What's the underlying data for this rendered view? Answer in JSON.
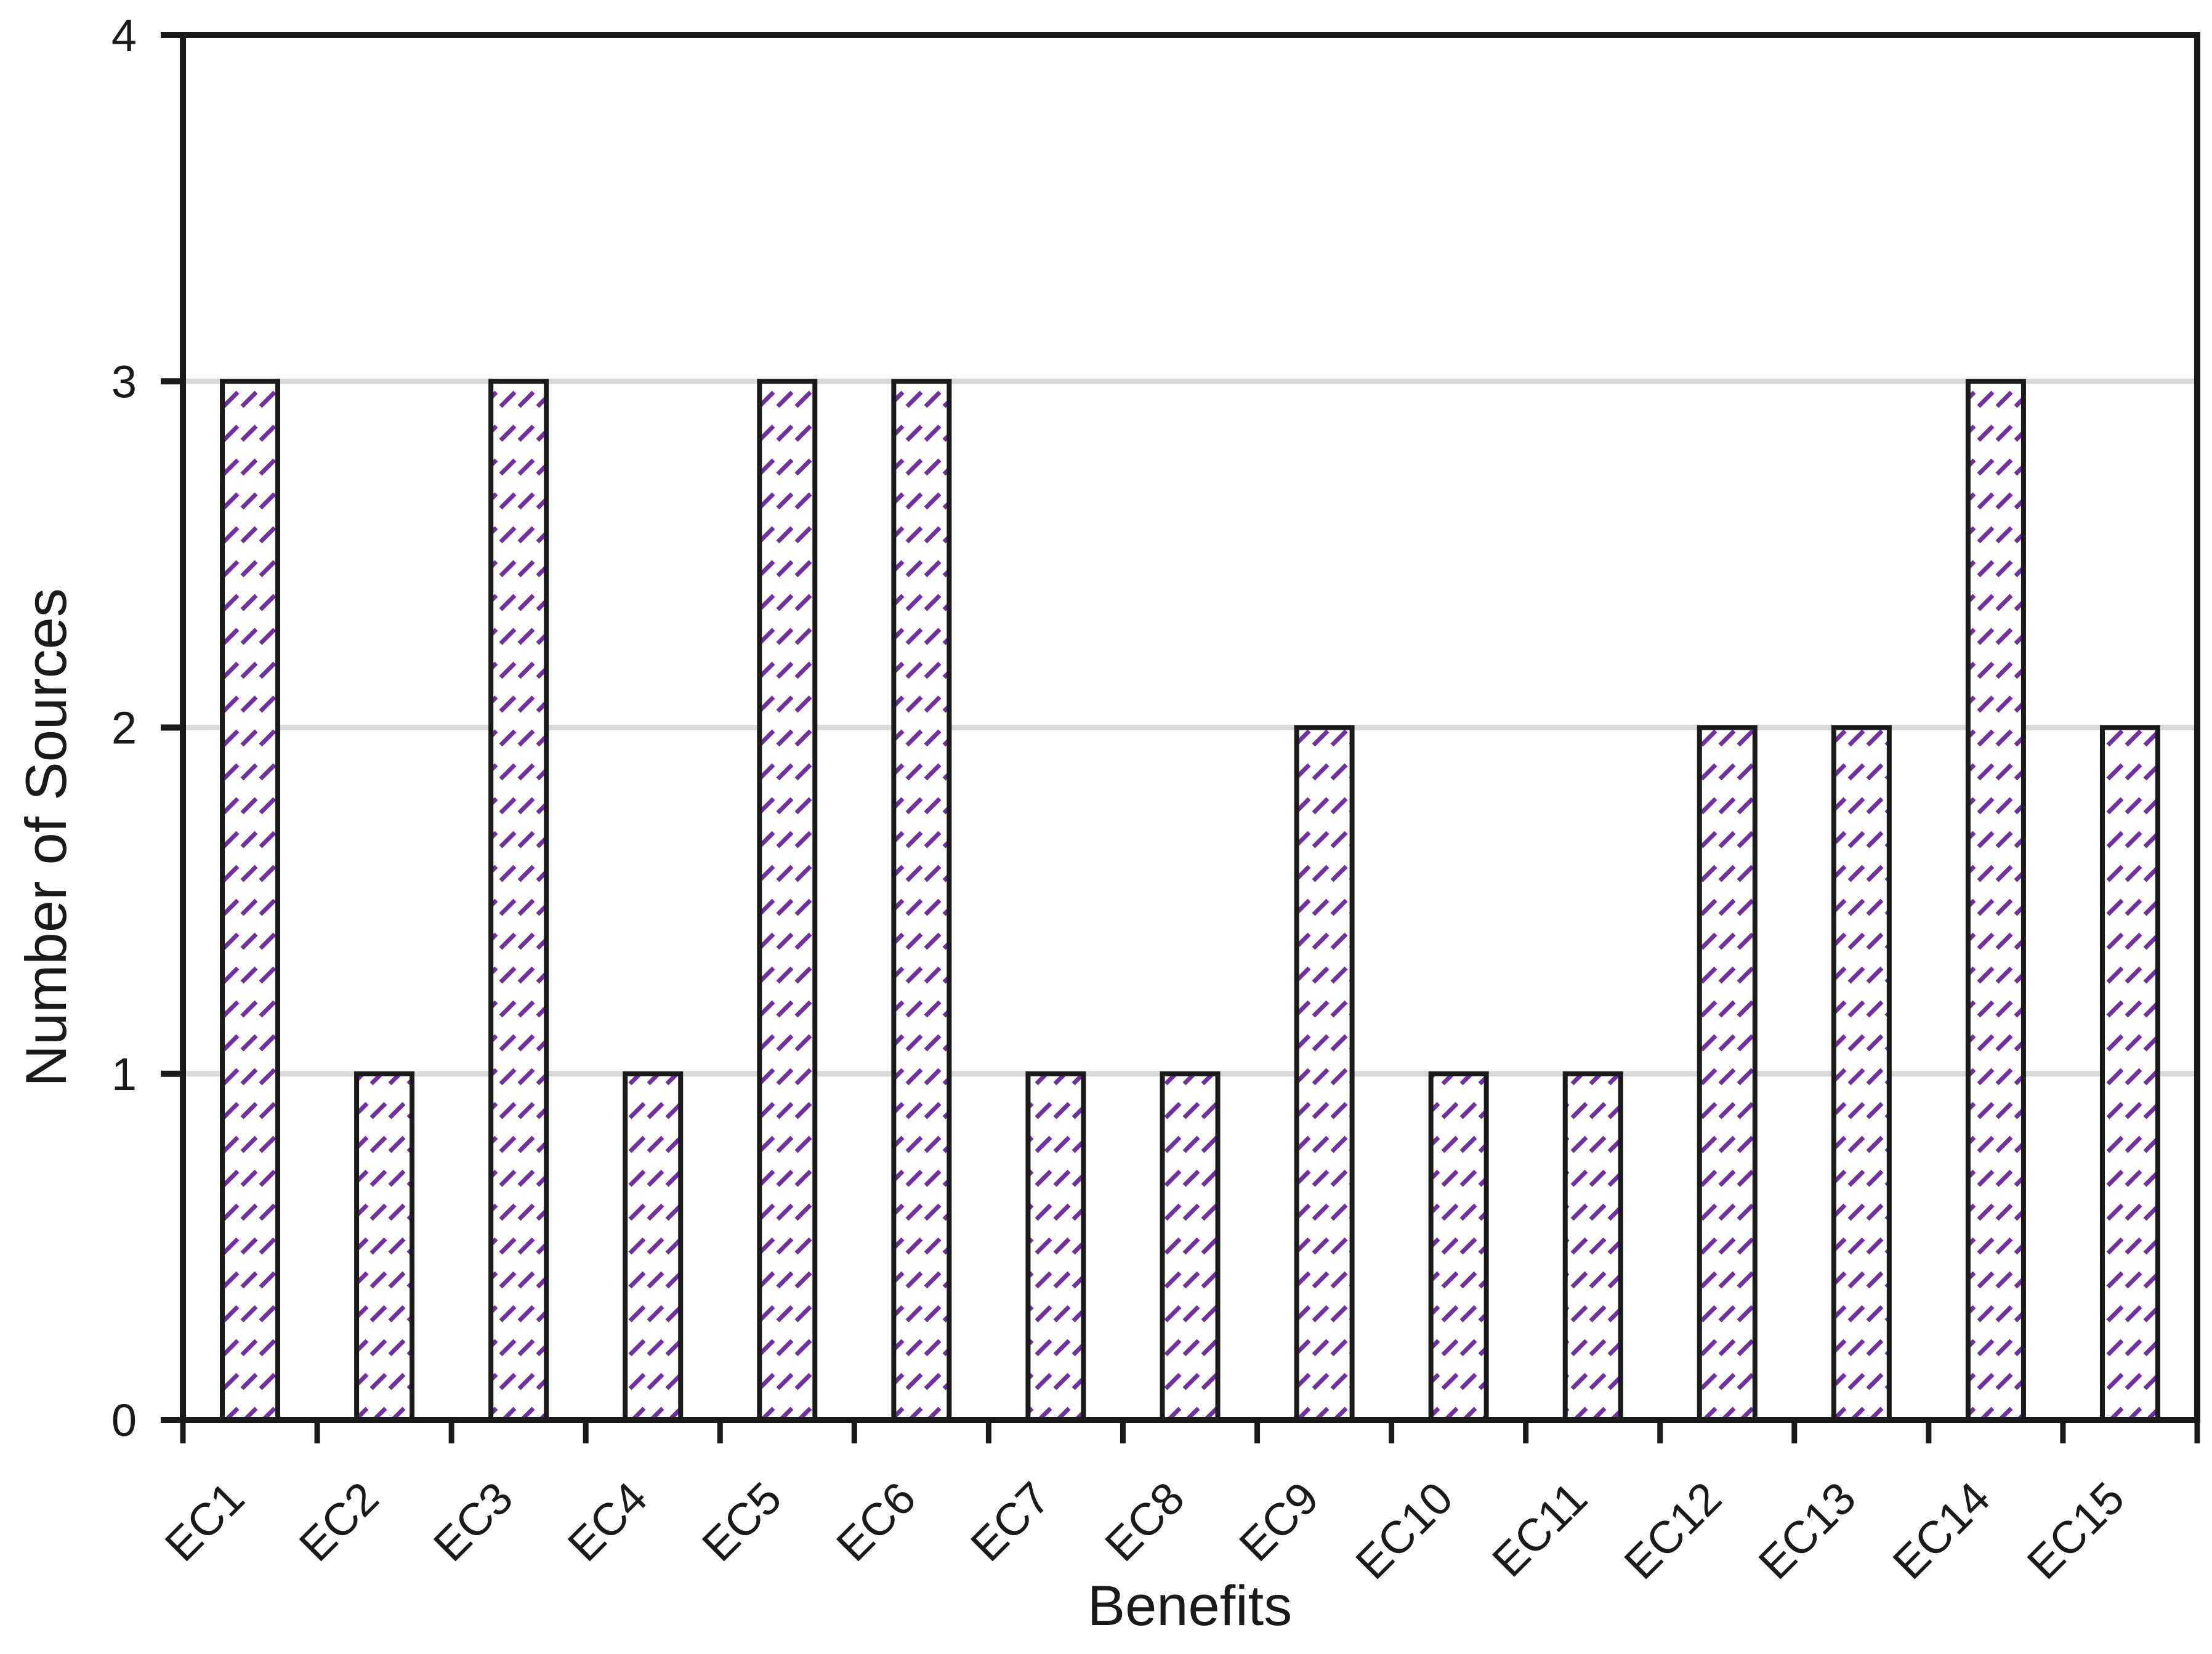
{
  "chart_data": {
    "type": "bar",
    "title": "",
    "xlabel": "Benefits",
    "ylabel": "Number of Sources",
    "categories": [
      "EC1",
      "EC2",
      "EC3",
      "EC4",
      "EC5",
      "EC6",
      "EC7",
      "EC8",
      "EC9",
      "EC10",
      "EC11",
      "EC12",
      "EC13",
      "EC14",
      "EC15"
    ],
    "values": [
      3,
      1,
      3,
      1,
      3,
      3,
      1,
      1,
      2,
      1,
      1,
      2,
      2,
      3,
      2
    ],
    "ylim": [
      0,
      4
    ],
    "yticks": [
      0,
      1,
      2,
      3,
      4
    ],
    "legend": "none",
    "grid": "horizontal gridlines at 1, 2, 3; plot area fully framed in black",
    "bar_fill": "white with purple dashed upward-diagonal hatch pattern, black outline",
    "colors": {
      "hatch": "#7030a0",
      "ink": "#1a1a1a",
      "gridline": "#d9d9d9",
      "background": "#ffffff"
    }
  }
}
